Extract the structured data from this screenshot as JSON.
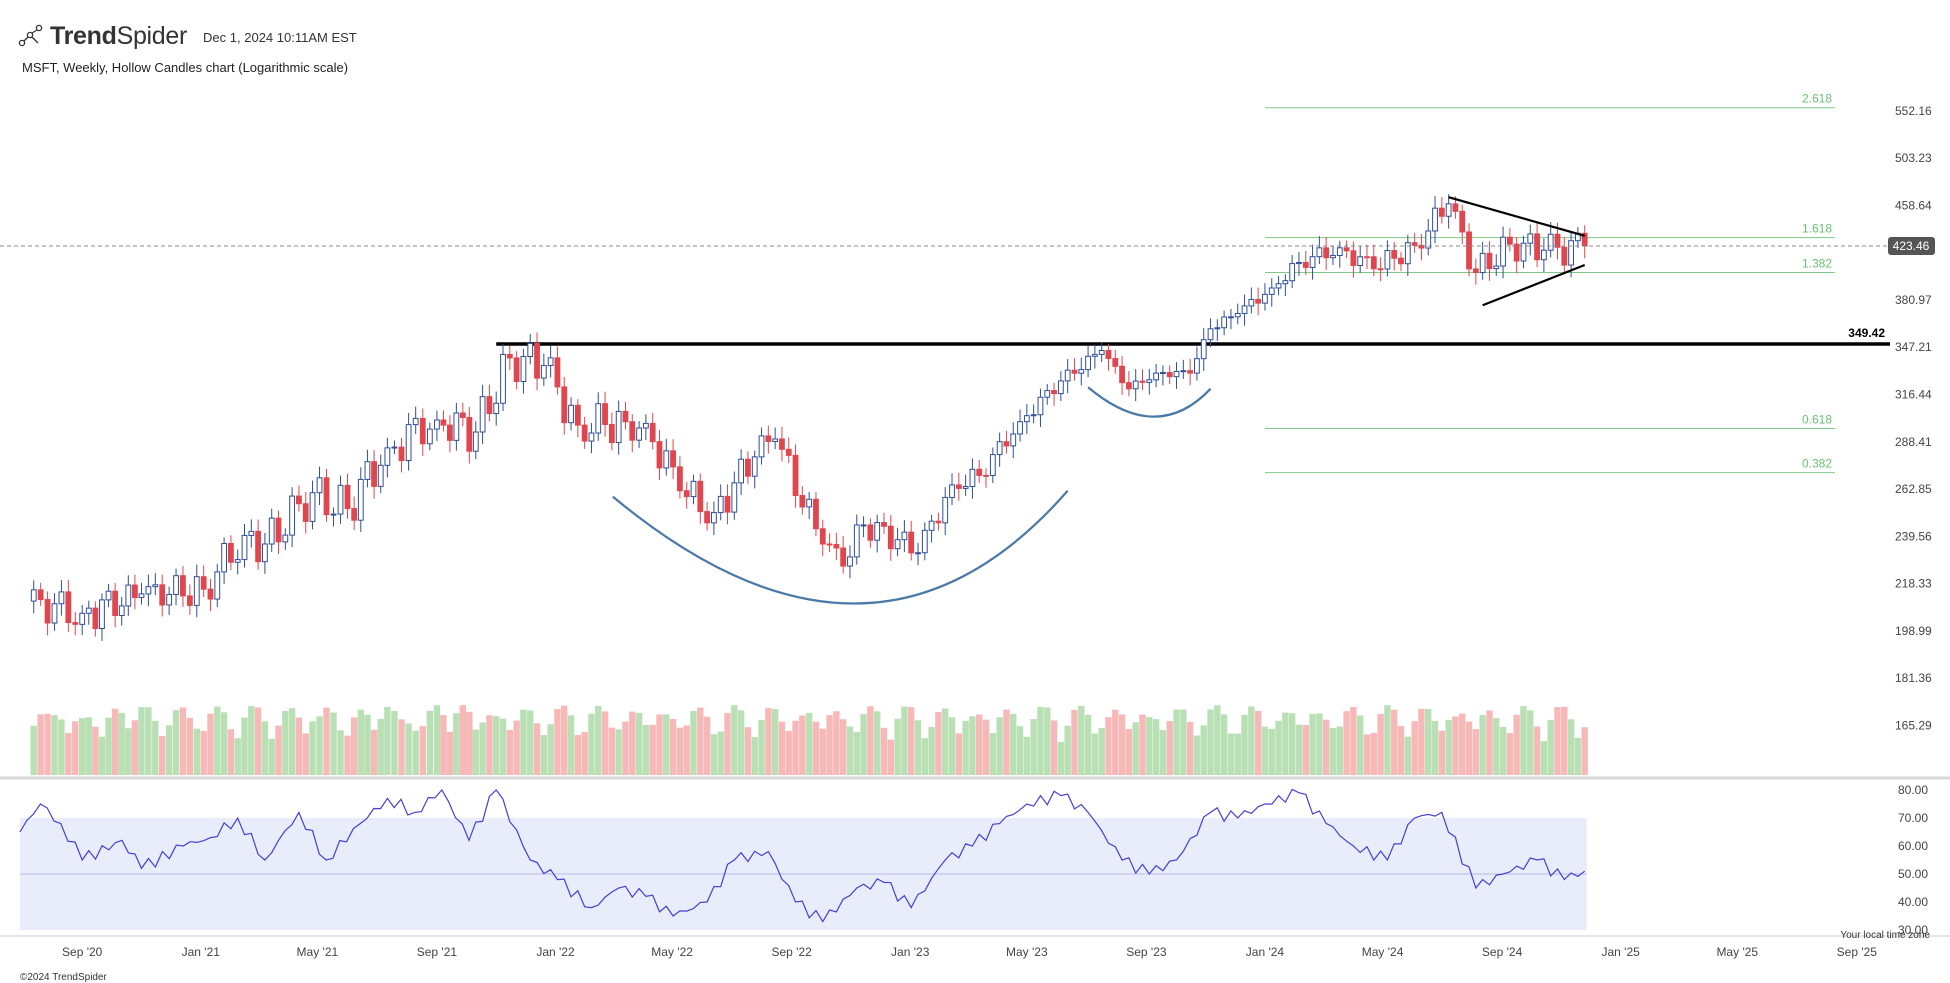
{
  "header": {
    "brand": "TrendSpider",
    "timestamp": "Dec 1, 2024 10:11AM EST",
    "subtitle": "MSFT, Weekly, Hollow Candles chart (Logarithmic scale)",
    "copyright": "©2024 TrendSpider",
    "local_time_note": "Your local time zone"
  },
  "colors": {
    "up": "#2f4f97",
    "down": "#e0464e",
    "vol_up": "#b9e0b5",
    "vol_down": "#f7b8b8",
    "fib": "#6bbf73",
    "rsi_line": "#4640d0",
    "rsi_band": "#e8ecfb",
    "pattern": "#4a78a8",
    "resistance": "#000000"
  },
  "chart_data": [
    {
      "type": "candlestick",
      "title": "MSFT, Weekly, Hollow Candles chart (Logarithmic scale)",
      "symbol": "MSFT",
      "scale": "log",
      "x_range": [
        "2020-06-29",
        "2025-09-30"
      ],
      "y_range": [
        150,
        610
      ],
      "x_ticks": [
        "Sep '20",
        "Jan '21",
        "May '21",
        "Sep '21",
        "Jan '22",
        "May '22",
        "Sep '22",
        "Jan '23",
        "May '23",
        "Sep '23",
        "Jan '24",
        "May '24",
        "Sep '24",
        "Jan '25",
        "May '25",
        "Sep '25"
      ],
      "y_ticks": [
        "552.16",
        "503.23",
        "458.64",
        "423.46",
        "380.97",
        "347.21",
        "316.44",
        "288.41",
        "262.85",
        "239.56",
        "218.33",
        "198.99",
        "181.36",
        "165.29"
      ],
      "last_price": "423.46",
      "resistance": {
        "label": "349.42",
        "value": 349.42,
        "start": "2021-11-01"
      },
      "fibonacci": {
        "start": "2024-01-01",
        "levels": [
          {
            "label": "2.618",
            "value": 555.5
          },
          {
            "label": "1.618",
            "value": 430.5
          },
          {
            "label": "1.382",
            "value": 402
          },
          {
            "label": "0.618",
            "value": 296
          },
          {
            "label": "0.382",
            "value": 271.5
          }
        ]
      },
      "triangle": {
        "upper": [
          [
            "2024-07-08",
            466
          ],
          [
            "2024-11-25",
            432
          ]
        ],
        "lower": [
          [
            "2024-08-12",
            377
          ],
          [
            "2024-11-25",
            408
          ]
        ]
      },
      "cup": {
        "from": [
          "2022-03-01",
          259
        ],
        "bottom": [
          "2022-11-07",
          210
        ],
        "to": [
          "2023-06-12",
          262
        ]
      },
      "handle": {
        "from": [
          "2023-07-03",
          321
        ],
        "bottom": [
          "2023-09-08",
          303
        ],
        "to": [
          "2023-11-06",
          320
        ]
      },
      "weekly_close": [
        [
          "2020-07-06",
          211
        ],
        [
          "2020-09-01",
          206
        ],
        [
          "2020-11-01",
          214
        ],
        [
          "2021-01-04",
          216
        ],
        [
          "2021-02-15",
          240
        ],
        [
          "2021-03-08",
          236
        ],
        [
          "2021-04-26",
          261
        ],
        [
          "2021-06-01",
          253
        ],
        [
          "2021-07-12",
          285
        ],
        [
          "2021-09-01",
          301
        ],
        [
          "2021-10-11",
          294
        ],
        [
          "2021-11-15",
          340
        ],
        [
          "2021-12-20",
          335
        ],
        [
          "2022-01-24",
          298
        ],
        [
          "2022-03-14",
          300
        ],
        [
          "2022-04-04",
          299
        ],
        [
          "2022-05-09",
          262
        ],
        [
          "2022-06-13",
          251
        ],
        [
          "2022-07-25",
          280
        ],
        [
          "2022-08-15",
          290
        ],
        [
          "2022-10-03",
          236
        ],
        [
          "2022-10-24",
          226
        ],
        [
          "2022-11-14",
          245
        ],
        [
          "2022-12-19",
          238
        ],
        [
          "2023-01-09",
          232
        ],
        [
          "2023-02-13",
          265
        ],
        [
          "2023-03-13",
          270
        ],
        [
          "2023-04-24",
          300
        ],
        [
          "2023-06-05",
          325
        ],
        [
          "2023-07-17",
          345
        ],
        [
          "2023-08-14",
          320
        ],
        [
          "2023-09-11",
          330
        ],
        [
          "2023-10-16",
          330
        ],
        [
          "2023-11-06",
          360
        ],
        [
          "2023-12-04",
          371
        ],
        [
          "2024-01-08",
          390
        ],
        [
          "2024-02-05",
          410
        ],
        [
          "2024-03-18",
          422
        ],
        [
          "2024-04-22",
          405
        ],
        [
          "2024-06-03",
          424
        ],
        [
          "2024-07-08",
          460
        ],
        [
          "2024-08-05",
          402
        ],
        [
          "2024-09-09",
          425
        ],
        [
          "2024-10-14",
          420
        ],
        [
          "2024-11-25",
          423.46
        ]
      ],
      "volume": {
        "unit": "relative",
        "note": "weekly bars, green on up weeks, red on down weeks"
      }
    },
    {
      "type": "line",
      "title": "",
      "x_range": [
        "2020-06-29",
        "2025-09-30"
      ],
      "ylim": [
        30,
        80
      ],
      "y_ticks": [
        "80.00",
        "70.00",
        "60.00",
        "50.00",
        "40.00",
        "30.00"
      ],
      "band": [
        30,
        70
      ],
      "midline": 50,
      "points": [
        [
          "2020-06-29",
          65
        ],
        [
          "2020-07-20",
          75
        ],
        [
          "2020-08-10",
          68
        ],
        [
          "2020-09-01",
          55
        ],
        [
          "2020-10-12",
          62
        ],
        [
          "2020-11-01",
          52
        ],
        [
          "2020-12-14",
          60
        ],
        [
          "2021-01-11",
          63
        ],
        [
          "2021-02-08",
          70
        ],
        [
          "2021-03-08",
          55
        ],
        [
          "2021-04-12",
          72
        ],
        [
          "2021-05-10",
          55
        ],
        [
          "2021-06-14",
          68
        ],
        [
          "2021-07-12",
          77
        ],
        [
          "2021-08-09",
          72
        ],
        [
          "2021-09-06",
          80
        ],
        [
          "2021-10-04",
          62
        ],
        [
          "2021-11-01",
          80
        ],
        [
          "2021-12-06",
          55
        ],
        [
          "2022-01-03",
          48
        ],
        [
          "2022-02-07",
          38
        ],
        [
          "2022-03-07",
          45
        ],
        [
          "2022-04-04",
          42
        ],
        [
          "2022-05-02",
          35
        ],
        [
          "2022-06-06",
          40
        ],
        [
          "2022-07-04",
          55
        ],
        [
          "2022-08-08",
          58
        ],
        [
          "2022-09-05",
          40
        ],
        [
          "2022-10-03",
          33
        ],
        [
          "2022-11-07",
          45
        ],
        [
          "2022-12-05",
          47
        ],
        [
          "2023-01-02",
          38
        ],
        [
          "2023-02-06",
          55
        ],
        [
          "2023-03-06",
          60
        ],
        [
          "2023-04-03",
          68
        ],
        [
          "2023-05-01",
          75
        ],
        [
          "2023-06-05",
          78
        ],
        [
          "2023-07-03",
          72
        ],
        [
          "2023-08-07",
          55
        ],
        [
          "2023-09-04",
          50
        ],
        [
          "2023-10-02",
          55
        ],
        [
          "2023-11-06",
          72
        ],
        [
          "2023-12-04",
          70
        ],
        [
          "2024-01-01",
          75
        ],
        [
          "2024-02-05",
          79
        ],
        [
          "2024-03-04",
          68
        ],
        [
          "2024-04-01",
          60
        ],
        [
          "2024-05-06",
          55
        ],
        [
          "2024-06-03",
          70
        ],
        [
          "2024-07-01",
          72
        ],
        [
          "2024-08-05",
          45
        ],
        [
          "2024-09-02",
          50
        ],
        [
          "2024-10-07",
          55
        ],
        [
          "2024-11-04",
          48
        ],
        [
          "2024-11-25",
          51
        ]
      ]
    }
  ]
}
